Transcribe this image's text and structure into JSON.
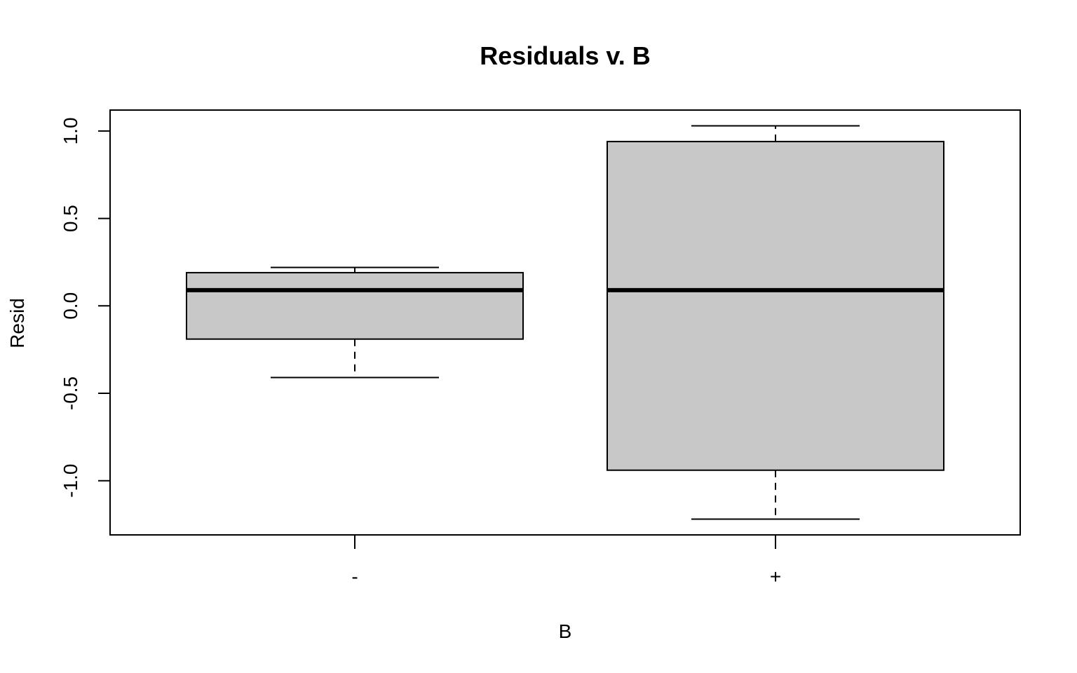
{
  "chart_data": {
    "type": "box",
    "title": "Residuals v. B",
    "xlabel": "B",
    "ylabel": "Resid",
    "categories": [
      "-",
      "+"
    ],
    "boxes": [
      {
        "category": "-",
        "whisker_low": -0.41,
        "q1": -0.19,
        "median": 0.09,
        "q3": 0.19,
        "whisker_high": 0.22
      },
      {
        "category": "+",
        "whisker_low": -1.22,
        "q1": -0.94,
        "median": 0.09,
        "q3": 0.94,
        "whisker_high": 1.03
      }
    ],
    "y_ticks": [
      "-1.0",
      "-0.5",
      "0.0",
      "0.5",
      "1.0"
    ],
    "y_tick_values": [
      -1.0,
      -0.5,
      0.0,
      0.5,
      1.0
    ],
    "ylim": [
      -1.31,
      1.12
    ],
    "box_fill": "#c8c8c8",
    "grid": false
  }
}
